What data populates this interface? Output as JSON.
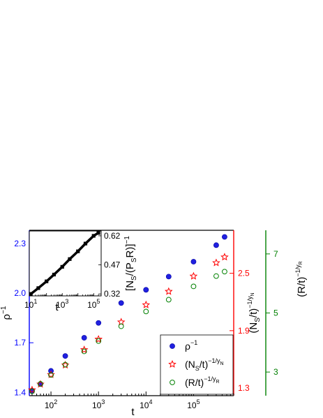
{
  "chart_data": {
    "type": "scatter",
    "x_scale": "log",
    "xlabel": "t",
    "xlim": [
      35,
      700000
    ],
    "x_ticks": [
      {
        "value": 100,
        "label": "10",
        "exp": "2"
      },
      {
        "value": 1000,
        "label": "10",
        "exp": "3"
      },
      {
        "value": 10000,
        "label": "10",
        "exp": "4"
      },
      {
        "value": 100000,
        "label": "10",
        "exp": "5"
      }
    ],
    "axes": {
      "left": {
        "label": "ρ",
        "label_sup": "−1",
        "lim": [
          1.38,
          2.38
        ],
        "ticks": [
          "1.4",
          "1.7",
          "2.0",
          "2.3"
        ],
        "color": "#0000ff"
      },
      "right1": {
        "label": "(N",
        "label_sub": "S",
        "label_tail": "/t)",
        "label_sup": "−1/y",
        "label_supsub": "N",
        "lim": [
          1.22,
          2.95
        ],
        "ticks": [
          "1.3",
          "1.9",
          "2.5"
        ],
        "color": "#ff0000"
      },
      "right2": {
        "label": "(R/t)",
        "label_sup": "−1/y",
        "label_supsub": "R",
        "lim": [
          2.2,
          7.8
        ],
        "ticks": [
          "3",
          "5",
          "7"
        ],
        "color": "#008000"
      }
    },
    "series": [
      {
        "name": "ρ",
        "name_sup": "−1",
        "axis": "left",
        "marker": "filled-circle",
        "color": "#2020e0",
        "x": [
          40,
          60,
          100,
          200,
          500,
          1000,
          3000,
          10000,
          30000,
          100000,
          300000,
          450000
        ],
        "y": [
          1.41,
          1.45,
          1.53,
          1.62,
          1.73,
          1.82,
          1.94,
          2.02,
          2.1,
          2.19,
          2.29,
          2.34
        ]
      },
      {
        "name": "(N",
        "name_sub": "S",
        "name_tail": "/t)",
        "name_sup": "−1/y",
        "name_supsub": "N",
        "axis": "right1",
        "marker": "star",
        "color": "#ff0000",
        "x": [
          40,
          60,
          100,
          200,
          500,
          1000,
          3000,
          10000,
          30000,
          100000,
          300000,
          450000
        ],
        "y": [
          1.28,
          1.34,
          1.44,
          1.54,
          1.7,
          1.81,
          1.99,
          2.17,
          2.31,
          2.47,
          2.61,
          2.67
        ]
      },
      {
        "name": "(R/t)",
        "name_sup": "−1/y",
        "name_supsub": "R",
        "axis": "right2",
        "marker": "open-circle",
        "color": "#008000",
        "x": [
          40,
          60,
          100,
          200,
          500,
          1000,
          3000,
          10000,
          30000,
          100000,
          300000,
          450000
        ],
        "y": [
          2.35,
          2.6,
          2.9,
          3.25,
          3.7,
          4.05,
          4.55,
          5.05,
          5.45,
          5.9,
          6.25,
          6.4
        ]
      }
    ],
    "legend_position": "bottom-right",
    "inset": {
      "x_scale": "log",
      "xlabel": "t",
      "xlim": [
        8,
        300000
      ],
      "x_ticks": [
        {
          "value": 10,
          "label": "10",
          "exp": "1"
        },
        {
          "value": 1000,
          "label": "10",
          "exp": "3"
        },
        {
          "value": 100000,
          "label": "10",
          "exp": "5"
        }
      ],
      "ylabel": "[N",
      "ylabel_sub1": "S",
      "ylabel_mid": "/(P",
      "ylabel_sub2": "S",
      "ylabel_tail": "R)]",
      "ylabel_sup": "−1",
      "ylim": [
        0.31,
        0.645
      ],
      "y_ticks": [
        "0.32",
        "0.47",
        "0.62"
      ],
      "series": {
        "marker": "square",
        "color": "#000000",
        "x": [
          10,
          30,
          100,
          300,
          1000,
          3000,
          10000,
          30000,
          100000,
          200000
        ],
        "y": [
          0.32,
          0.35,
          0.385,
          0.42,
          0.46,
          0.5,
          0.54,
          0.58,
          0.62,
          0.635
        ]
      }
    }
  }
}
